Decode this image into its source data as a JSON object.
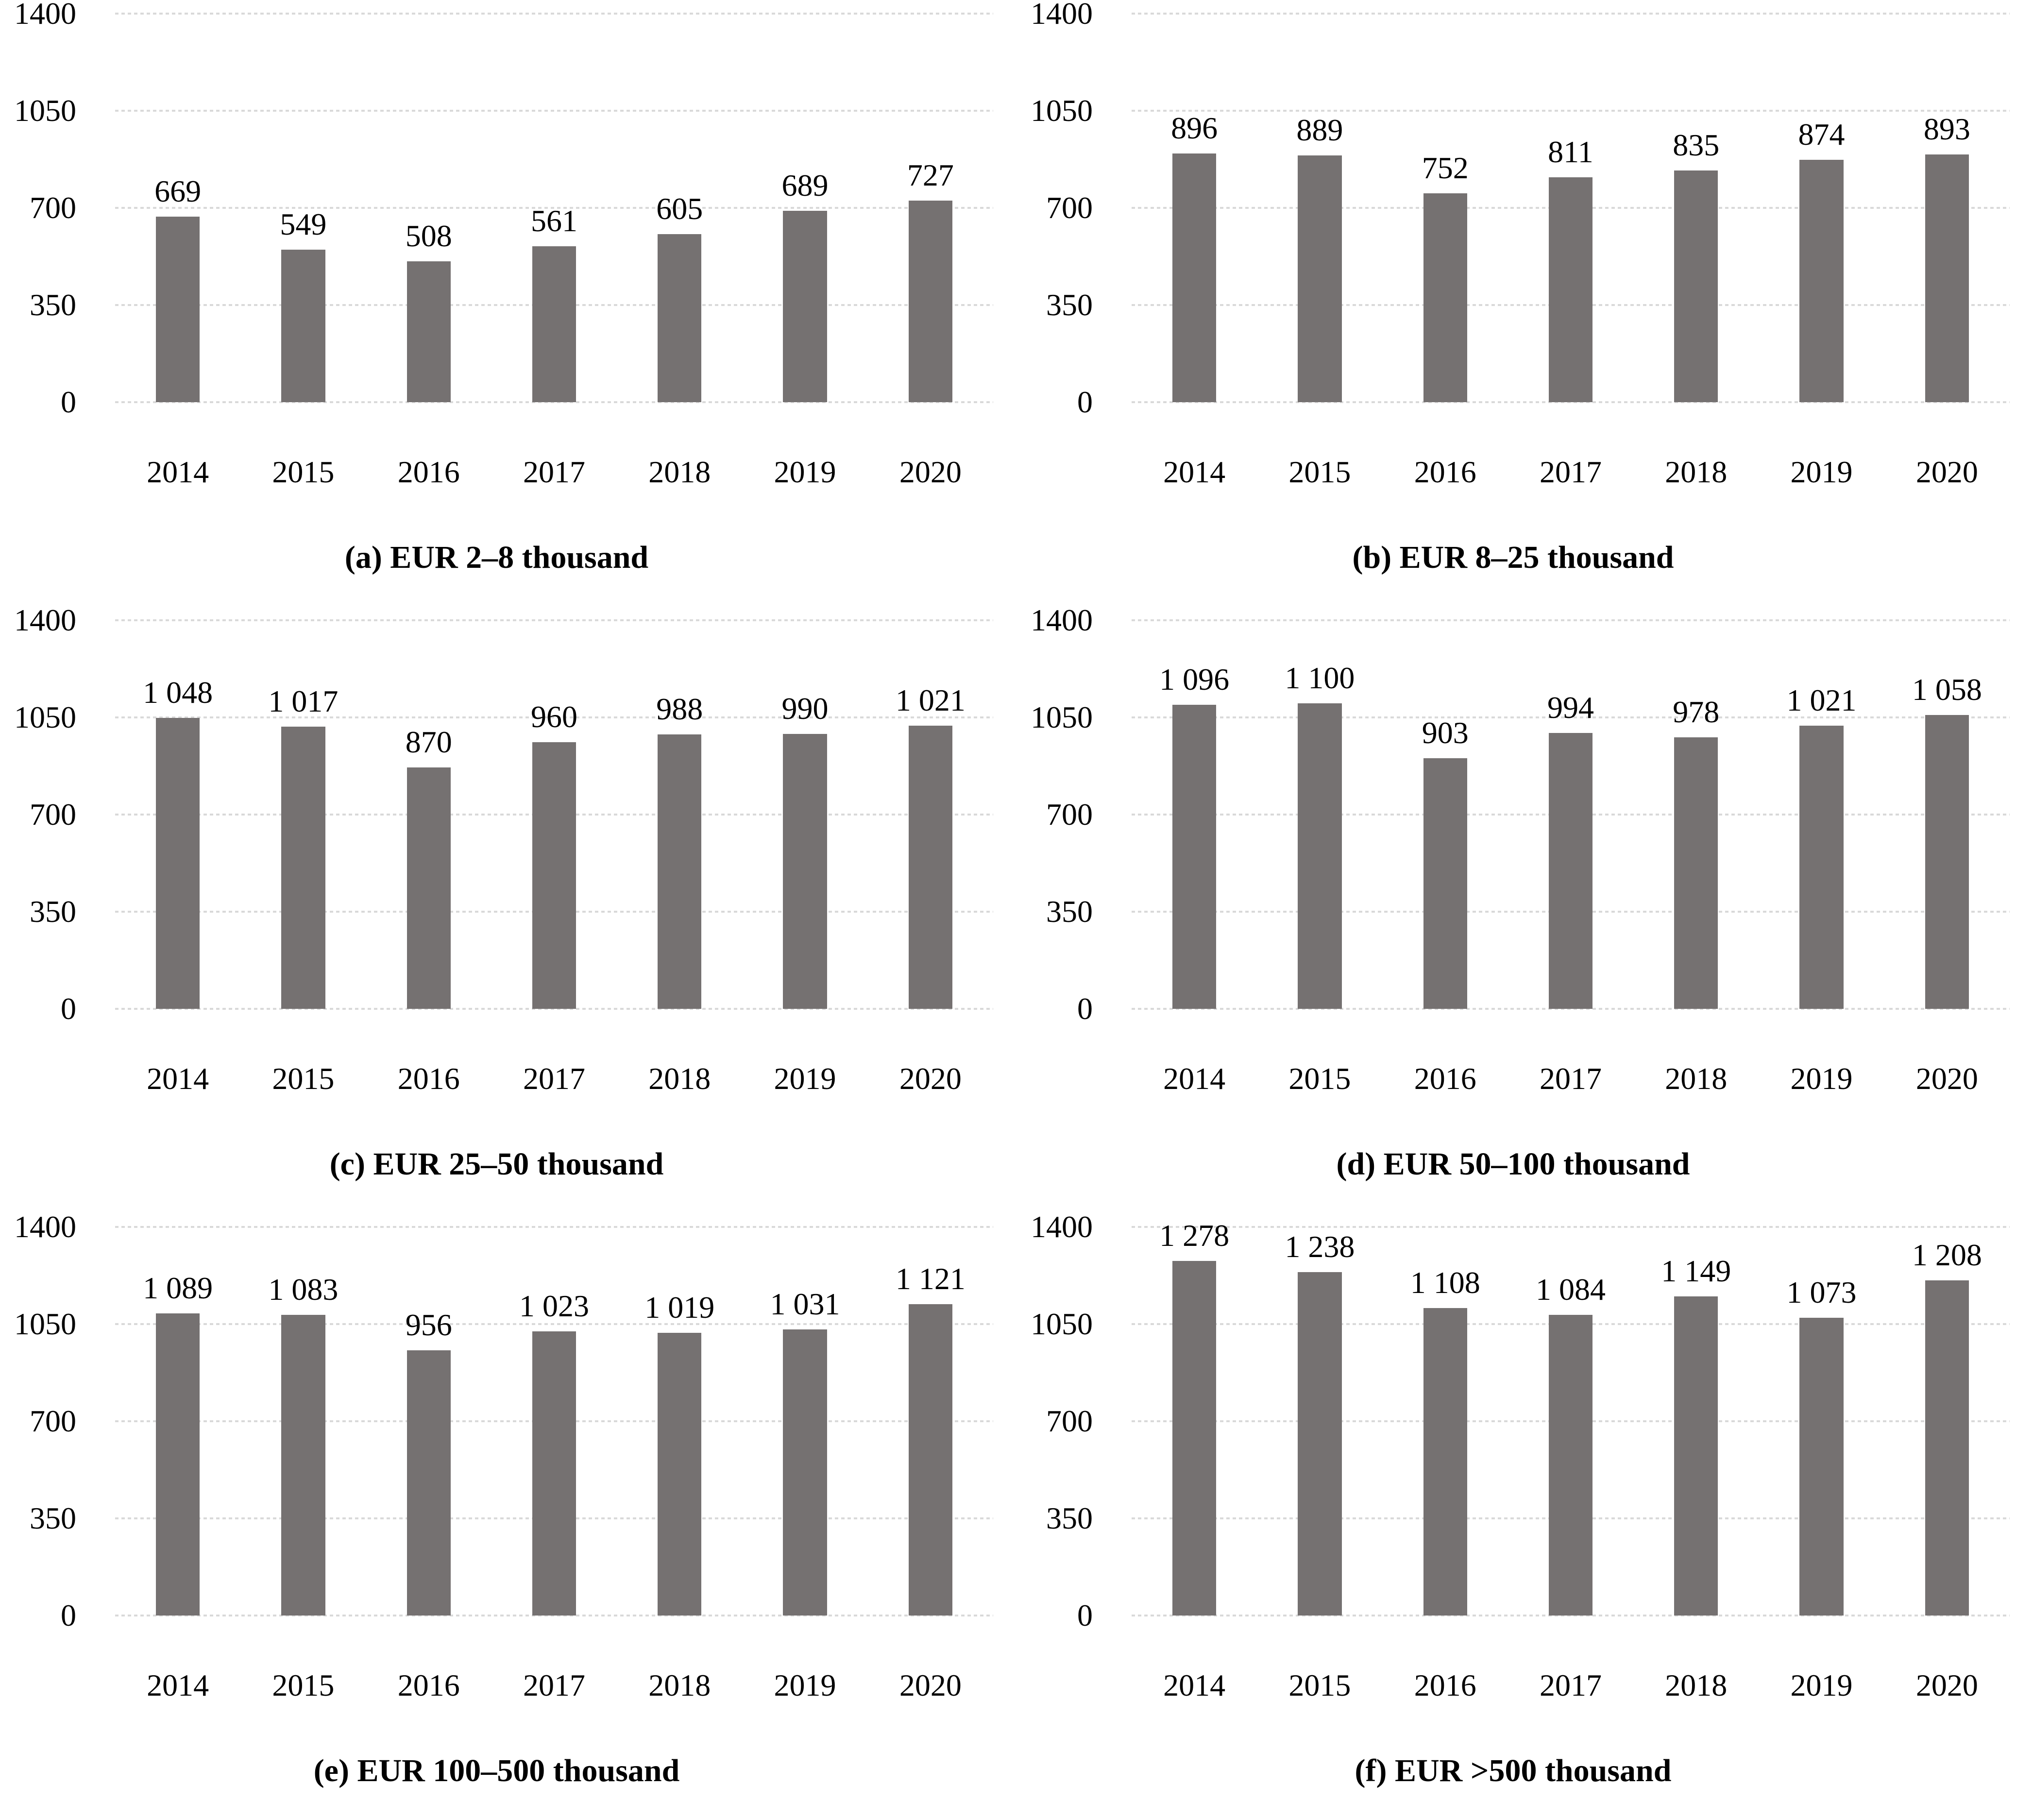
{
  "colors": {
    "bar": "#757171",
    "gridline": "#D9D9D9",
    "text": "#000000"
  },
  "axis": {
    "ymax": 1400,
    "yticks_top_to_bottom": [
      "1400",
      "1050",
      "700",
      "350",
      "0"
    ],
    "grid": true,
    "categories": [
      "2014",
      "2015",
      "2016",
      "2017",
      "2018",
      "2019",
      "2020"
    ]
  },
  "chart_data": [
    {
      "id": "a",
      "type": "bar",
      "caption": "(a) EUR 2–8 thousand",
      "categories": [
        "2014",
        "2015",
        "2016",
        "2017",
        "2018",
        "2019",
        "2020"
      ],
      "values": [
        669,
        549,
        508,
        561,
        605,
        689,
        727
      ],
      "value_labels": [
        "669",
        "549",
        "508",
        "561",
        "605",
        "689",
        "727"
      ],
      "ylim": [
        0,
        1400
      ],
      "yticks": [
        0,
        350,
        700,
        1050,
        1400
      ]
    },
    {
      "id": "b",
      "type": "bar",
      "caption": "(b) EUR 8–25 thousand",
      "categories": [
        "2014",
        "2015",
        "2016",
        "2017",
        "2018",
        "2019",
        "2020"
      ],
      "values": [
        896,
        889,
        752,
        811,
        835,
        874,
        893
      ],
      "value_labels": [
        "896",
        "889",
        "752",
        "811",
        "835",
        "874",
        "893"
      ],
      "ylim": [
        0,
        1400
      ],
      "yticks": [
        0,
        350,
        700,
        1050,
        1400
      ]
    },
    {
      "id": "c",
      "type": "bar",
      "caption": "(c) EUR 25–50 thousand",
      "categories": [
        "2014",
        "2015",
        "2016",
        "2017",
        "2018",
        "2019",
        "2020"
      ],
      "values": [
        1048,
        1017,
        870,
        960,
        988,
        990,
        1021
      ],
      "value_labels": [
        "1 048",
        "1 017",
        "870",
        "960",
        "988",
        "990",
        "1 021"
      ],
      "ylim": [
        0,
        1400
      ],
      "yticks": [
        0,
        350,
        700,
        1050,
        1400
      ]
    },
    {
      "id": "d",
      "type": "bar",
      "caption": "(d) EUR 50–100 thousand",
      "categories": [
        "2014",
        "2015",
        "2016",
        "2017",
        "2018",
        "2019",
        "2020"
      ],
      "values": [
        1096,
        1100,
        903,
        994,
        978,
        1021,
        1058
      ],
      "value_labels": [
        "1 096",
        "1 100",
        "903",
        "994",
        "978",
        "1 021",
        "1 058"
      ],
      "ylim": [
        0,
        1400
      ],
      "yticks": [
        0,
        350,
        700,
        1050,
        1400
      ]
    },
    {
      "id": "e",
      "type": "bar",
      "caption": "(e) EUR 100–500 thousand",
      "categories": [
        "2014",
        "2015",
        "2016",
        "2017",
        "2018",
        "2019",
        "2020"
      ],
      "values": [
        1089,
        1083,
        956,
        1023,
        1019,
        1031,
        1121
      ],
      "value_labels": [
        "1 089",
        "1 083",
        "956",
        "1 023",
        "1 019",
        "1 031",
        "1 121"
      ],
      "ylim": [
        0,
        1400
      ],
      "yticks": [
        0,
        350,
        700,
        1050,
        1400
      ]
    },
    {
      "id": "f",
      "type": "bar",
      "caption": "(f) EUR >500 thousand",
      "categories": [
        "2014",
        "2015",
        "2016",
        "2017",
        "2018",
        "2019",
        "2020"
      ],
      "values": [
        1278,
        1238,
        1108,
        1084,
        1149,
        1073,
        1208
      ],
      "value_labels": [
        "1 278",
        "1 238",
        "1 108",
        "1 084",
        "1 149",
        "1 073",
        "1 208"
      ],
      "ylim": [
        0,
        1400
      ],
      "yticks": [
        0,
        350,
        700,
        1050,
        1400
      ]
    }
  ]
}
